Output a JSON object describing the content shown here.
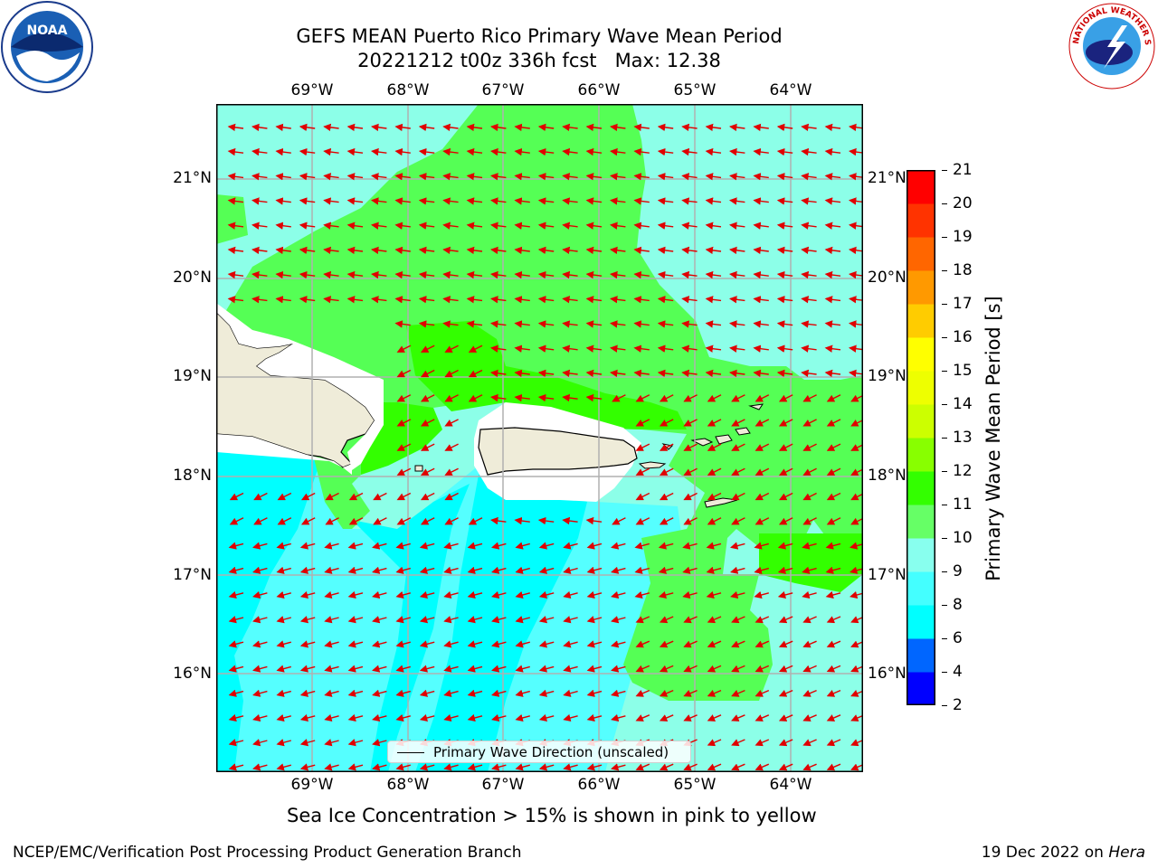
{
  "title": {
    "line1": "GEFS MEAN Puerto Rico Primary Wave Mean Period",
    "line2": "20221212 t00z 336h fcst   Max: 12.38"
  },
  "lon_labels": [
    "69°W",
    "68°W",
    "67°W",
    "66°W",
    "65°W",
    "64°W"
  ],
  "lat_labels": [
    "21°N",
    "20°N",
    "19°N",
    "18°N",
    "17°N",
    "16°N"
  ],
  "legend": {
    "label": "Primary Wave Direction (unscaled)"
  },
  "colorbar": {
    "label": "Primary Wave Mean Period [s]",
    "ticks": [
      "2",
      "4",
      "6",
      "8",
      "9",
      "10",
      "11",
      "12",
      "13",
      "14",
      "15",
      "16",
      "17",
      "18",
      "19",
      "20",
      "21"
    ],
    "colors": [
      "#0000ff",
      "#0066ff",
      "#00ffff",
      "#44ffff",
      "#88ffee",
      "#66ff66",
      "#33ff00",
      "#88ff00",
      "#ccff00",
      "#eeff00",
      "#ffff00",
      "#ffcc00",
      "#ff9900",
      "#ff6600",
      "#ff3300",
      "#ff0000"
    ]
  },
  "map_colors": {
    "land": "#efecd9",
    "cyan": "#00ffff",
    "light_cyan": "#55ffff",
    "aqua": "#8cffe8",
    "green1": "#55ff55",
    "green2": "#33ff00",
    "arrow": "#e00000"
  },
  "note": "Sea Ice Concentration > 15% is shown in pink to yellow",
  "footer": {
    "left": "NCEP/EMC/Verification Post Processing Product Generation Branch",
    "date": "19 Dec 2022 on ",
    "machine": "Hera"
  },
  "logos": {
    "left": "NOAA",
    "right": "NATIONAL WEATHER SERVICE"
  }
}
